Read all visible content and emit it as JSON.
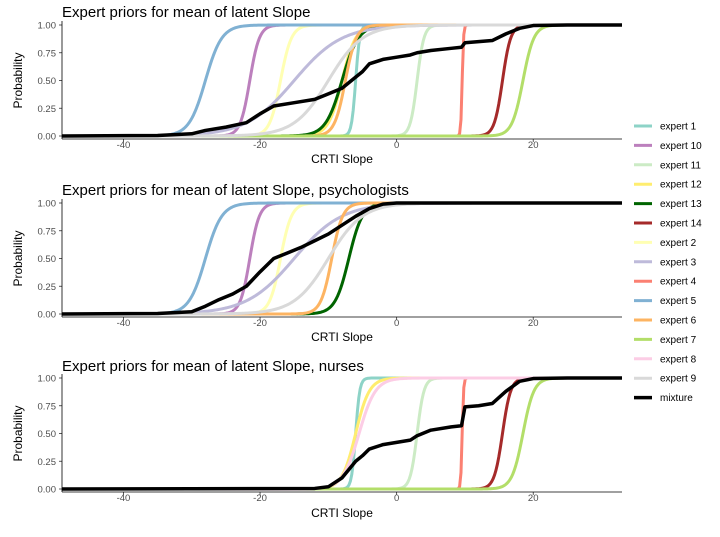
{
  "colors": {
    "expert 1": "#8dd3c7",
    "expert 10": "#bc80bd",
    "expert 11": "#ccebc5",
    "expert 12": "#ffed6f",
    "expert 13": "#006400",
    "expert 14": "#a52a2a",
    "expert 2": "#ffffb3",
    "expert 3": "#bebada",
    "expert 4": "#fb8072",
    "expert 5": "#80b1d3",
    "expert 6": "#fdb462",
    "expert 7": "#b3de69",
    "expert 8": "#fccde5",
    "expert 9": "#d9d9d9",
    "mixture": "#000000"
  },
  "legend": [
    "expert 1",
    "expert 10",
    "expert 11",
    "expert 12",
    "expert 13",
    "expert 14",
    "expert 2",
    "expert 3",
    "expert 4",
    "expert 5",
    "expert 6",
    "expert 7",
    "expert 8",
    "expert 9",
    "mixture"
  ],
  "chart_data": [
    {
      "type": "line",
      "title": "Expert priors for mean of latent Slope",
      "xlabel": "CRTI Slope",
      "ylabel": "Probability",
      "xlim": [
        -49,
        33
      ],
      "ylim": [
        0,
        1
      ],
      "xticks": [
        -40,
        -20,
        0,
        20
      ],
      "yticks": [
        "0.00",
        "0.25",
        "0.50",
        "0.75",
        "1.00"
      ],
      "series": [
        {
          "name": "expert 5",
          "type": "cdf",
          "center": -28,
          "width": 1.2
        },
        {
          "name": "expert 3",
          "type": "cdf",
          "center": -15,
          "width": 3.5
        },
        {
          "name": "expert 10",
          "type": "cdf",
          "center": -21.5,
          "width": 0.7
        },
        {
          "name": "expert 2",
          "type": "cdf",
          "center": -17,
          "width": 0.8
        },
        {
          "name": "expert 9",
          "type": "cdf",
          "center": -10,
          "width": 2.5
        },
        {
          "name": "expert 12",
          "type": "cdf",
          "center": -8,
          "width": 1.0
        },
        {
          "name": "expert 6",
          "type": "cdf",
          "center": -7.5,
          "width": 0.8
        },
        {
          "name": "expert 1",
          "type": "cdf",
          "center": -6,
          "width": 0.3
        },
        {
          "name": "expert 13",
          "type": "cdf",
          "center": -8,
          "width": 1.2
        },
        {
          "name": "expert 11",
          "type": "cdf",
          "center": 3,
          "width": 0.5
        },
        {
          "name": "expert 4",
          "type": "cdf",
          "center": 9.6,
          "width": 0.1
        },
        {
          "name": "expert 14",
          "type": "cdf",
          "center": 15.5,
          "width": 0.6
        },
        {
          "name": "expert 7",
          "type": "cdf",
          "center": 18.5,
          "width": 0.8
        },
        {
          "name": "mixture",
          "type": "points",
          "x": [
            -49,
            -35,
            -30,
            -28,
            -25,
            -22,
            -20,
            -18,
            -15,
            -12,
            -10,
            -8,
            -6,
            -5,
            -4,
            -2,
            0,
            2,
            3,
            5,
            8,
            9.5,
            10,
            12,
            14,
            16,
            18,
            20,
            25,
            33
          ],
          "y": [
            0,
            0.005,
            0.02,
            0.05,
            0.08,
            0.12,
            0.2,
            0.27,
            0.3,
            0.33,
            0.38,
            0.43,
            0.53,
            0.58,
            0.65,
            0.69,
            0.71,
            0.73,
            0.75,
            0.77,
            0.79,
            0.8,
            0.84,
            0.85,
            0.86,
            0.92,
            0.97,
            0.995,
            1,
            1
          ]
        }
      ]
    },
    {
      "type": "line",
      "title": "Expert priors for mean of latent Slope, psychologists",
      "xlabel": "CRTI Slope",
      "ylabel": "Probability",
      "xlim": [
        -49,
        33
      ],
      "ylim": [
        0,
        1
      ],
      "xticks": [
        -40,
        -20,
        0,
        20
      ],
      "yticks": [
        "0.00",
        "0.25",
        "0.50",
        "0.75",
        "1.00"
      ],
      "series": [
        {
          "name": "expert 5",
          "type": "cdf",
          "center": -28,
          "width": 1.2
        },
        {
          "name": "expert 3",
          "type": "cdf",
          "center": -15,
          "width": 3.5
        },
        {
          "name": "expert 10",
          "type": "cdf",
          "center": -21.5,
          "width": 0.7
        },
        {
          "name": "expert 2",
          "type": "cdf",
          "center": -17,
          "width": 0.8
        },
        {
          "name": "expert 9",
          "type": "cdf",
          "center": -10,
          "width": 2.5
        },
        {
          "name": "expert 6",
          "type": "cdf",
          "center": -9.5,
          "width": 0.8
        },
        {
          "name": "expert 13",
          "type": "cdf",
          "center": -7,
          "width": 1.0
        },
        {
          "name": "mixture",
          "type": "points",
          "x": [
            -49,
            -35,
            -30,
            -28,
            -26,
            -24,
            -22,
            -20,
            -18,
            -16,
            -14,
            -12,
            -10,
            -8,
            -6,
            -4,
            -2,
            0,
            33
          ],
          "y": [
            0,
            0.005,
            0.02,
            0.07,
            0.13,
            0.18,
            0.25,
            0.38,
            0.5,
            0.55,
            0.6,
            0.66,
            0.72,
            0.8,
            0.88,
            0.95,
            0.99,
            1,
            1
          ]
        }
      ]
    },
    {
      "type": "line",
      "title": "Expert priors for mean of latent Slope, nurses",
      "xlabel": "CRTI Slope",
      "ylabel": "Probability",
      "xlim": [
        -49,
        33
      ],
      "ylim": [
        0,
        1
      ],
      "xticks": [
        -40,
        -20,
        0,
        20
      ],
      "yticks": [
        "0.00",
        "0.25",
        "0.50",
        "0.75",
        "1.00"
      ],
      "series": [
        {
          "name": "expert 1",
          "type": "cdf",
          "center": -6,
          "width": 0.3
        },
        {
          "name": "expert 8",
          "type": "cdf",
          "center": -5.5,
          "width": 1.2
        },
        {
          "name": "expert 12",
          "type": "cdf",
          "center": -6,
          "width": 1.0
        },
        {
          "name": "expert 11",
          "type": "cdf",
          "center": 3,
          "width": 0.5
        },
        {
          "name": "expert 4",
          "type": "cdf",
          "center": 9.6,
          "width": 0.1
        },
        {
          "name": "expert 14",
          "type": "cdf",
          "center": 15.5,
          "width": 0.6
        },
        {
          "name": "expert 7",
          "type": "cdf",
          "center": 18.5,
          "width": 0.8
        },
        {
          "name": "mixture",
          "type": "points",
          "x": [
            -49,
            -12,
            -10,
            -8,
            -6,
            -5,
            -4,
            -2,
            0,
            2,
            3,
            5,
            8,
            9.5,
            10,
            12,
            14,
            16,
            18,
            20,
            25,
            33
          ],
          "y": [
            0,
            0.005,
            0.02,
            0.1,
            0.25,
            0.3,
            0.36,
            0.4,
            0.42,
            0.44,
            0.48,
            0.53,
            0.56,
            0.57,
            0.74,
            0.75,
            0.77,
            0.88,
            0.97,
            0.995,
            1,
            1
          ]
        }
      ]
    }
  ]
}
